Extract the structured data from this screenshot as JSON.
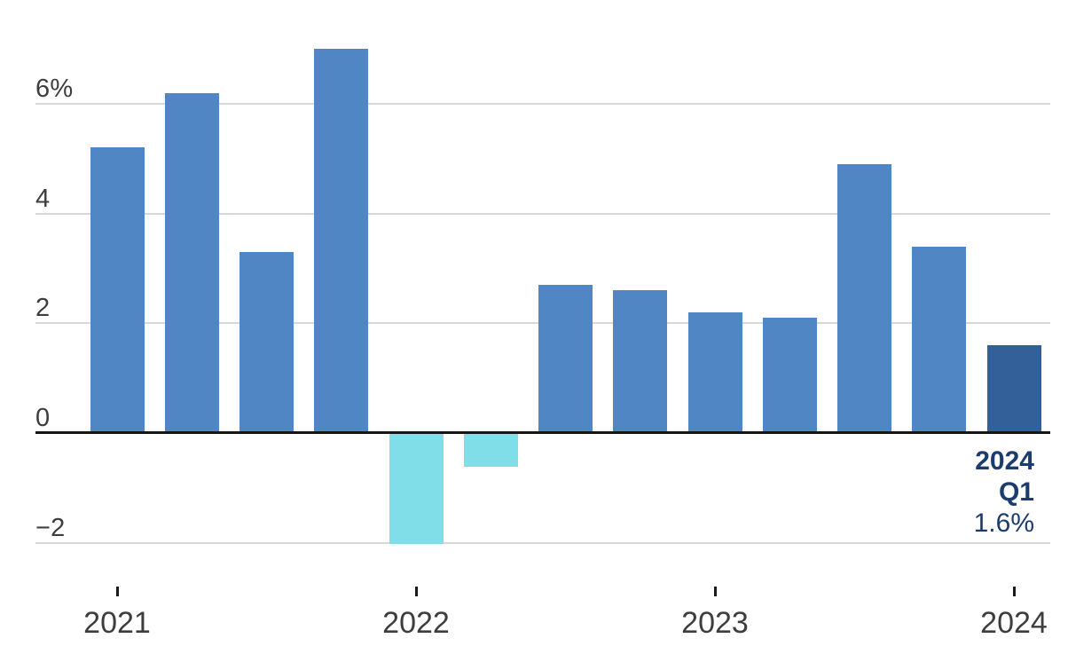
{
  "chart_data": {
    "type": "bar",
    "title": "",
    "xlabel": "",
    "ylabel": "",
    "categories": [
      "2021 Q1",
      "2021 Q2",
      "2021 Q3",
      "2021 Q4",
      "2022 Q1",
      "2022 Q2",
      "2022 Q3",
      "2022 Q4",
      "2023 Q1",
      "2023 Q2",
      "2023 Q3",
      "2023 Q4",
      "2024 Q1"
    ],
    "values": [
      5.2,
      6.2,
      3.3,
      7.0,
      -2.0,
      -0.6,
      2.7,
      2.6,
      2.2,
      2.1,
      4.9,
      3.4,
      1.6
    ],
    "highlight_index": 12,
    "ylim": [
      -2.6,
      7.2
    ],
    "grid": "horizontal",
    "legend": "none",
    "y_ticks": [
      {
        "value": 6,
        "label": "6%"
      },
      {
        "value": 4,
        "label": "4"
      },
      {
        "value": 2,
        "label": "2"
      },
      {
        "value": 0,
        "label": "0"
      },
      {
        "value": -2,
        "label": "−2"
      }
    ],
    "x_ticks": [
      {
        "index": 0,
        "label": "2021"
      },
      {
        "index": 4,
        "label": "2022"
      },
      {
        "index": 8,
        "label": "2023"
      },
      {
        "index": 12,
        "label": "2024"
      }
    ],
    "colors": {
      "positive_bar": "#5186c5",
      "negative_bar": "#7fdee7",
      "highlight_bar": "#34609a",
      "annotation_text": "#1d3c6e",
      "axis_text": "#3d3d3d",
      "gridline": "#d8d8d8",
      "zero_line": "#151515"
    },
    "annotation": {
      "year": "2024",
      "quarter": "Q1",
      "value": "1.6%"
    }
  }
}
